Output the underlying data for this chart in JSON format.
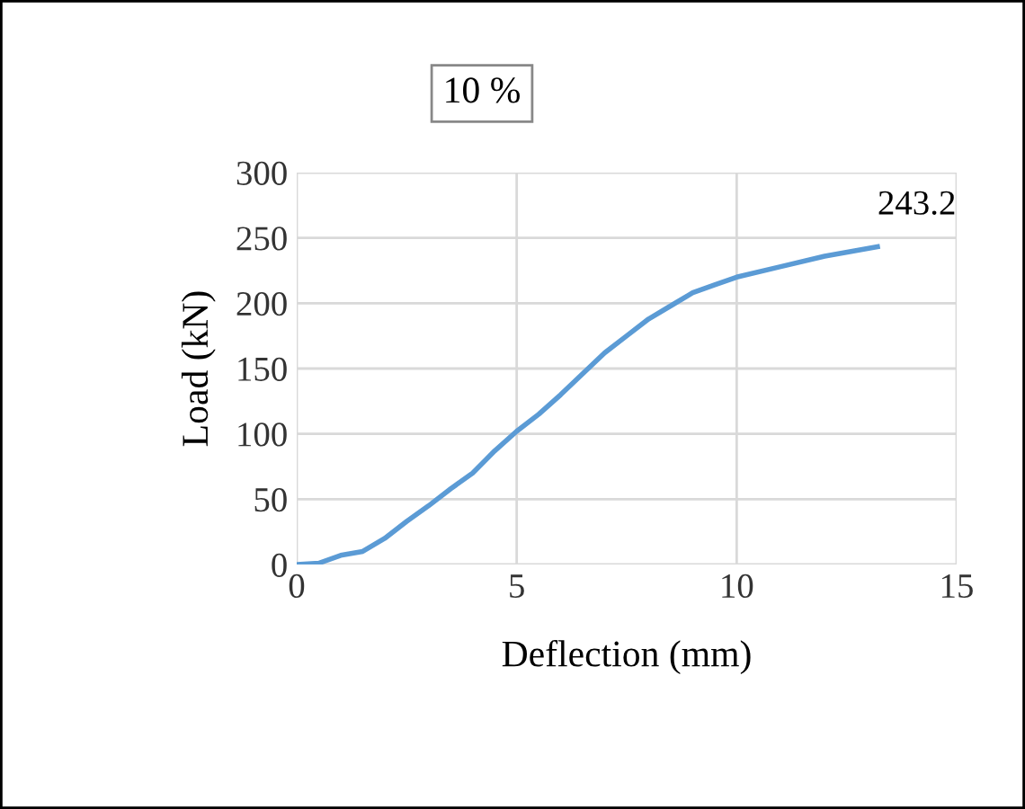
{
  "chart_data": {
    "type": "line",
    "title": "10 %",
    "xlabel": "Deflection (mm)",
    "ylabel": "Load (kN)",
    "x": [
      0,
      0.5,
      1,
      1.5,
      2,
      2.5,
      3,
      3.5,
      4,
      4.5,
      5,
      5.5,
      6,
      6.5,
      7,
      7.5,
      8,
      8.5,
      9,
      9.5,
      10,
      11,
      12,
      13.2
    ],
    "series": [
      {
        "color": "#5b9bd5",
        "values": [
          0,
          1,
          7,
          10,
          20,
          33,
          45,
          58,
          70,
          87,
          102,
          115,
          130,
          146,
          162,
          175,
          188,
          198,
          208,
          214,
          220,
          228,
          236,
          243.2
        ]
      }
    ],
    "annotations": [
      {
        "text": "243.2",
        "x": 13.2,
        "y": 243.2
      }
    ],
    "xlim": [
      0,
      15
    ],
    "ylim": [
      0,
      300
    ],
    "xticks": [
      0,
      5,
      10,
      15
    ],
    "yticks": [
      0,
      50,
      100,
      150,
      200,
      250,
      300
    ],
    "grid": true,
    "legend": false,
    "marker": "none",
    "line_style": "solid"
  }
}
